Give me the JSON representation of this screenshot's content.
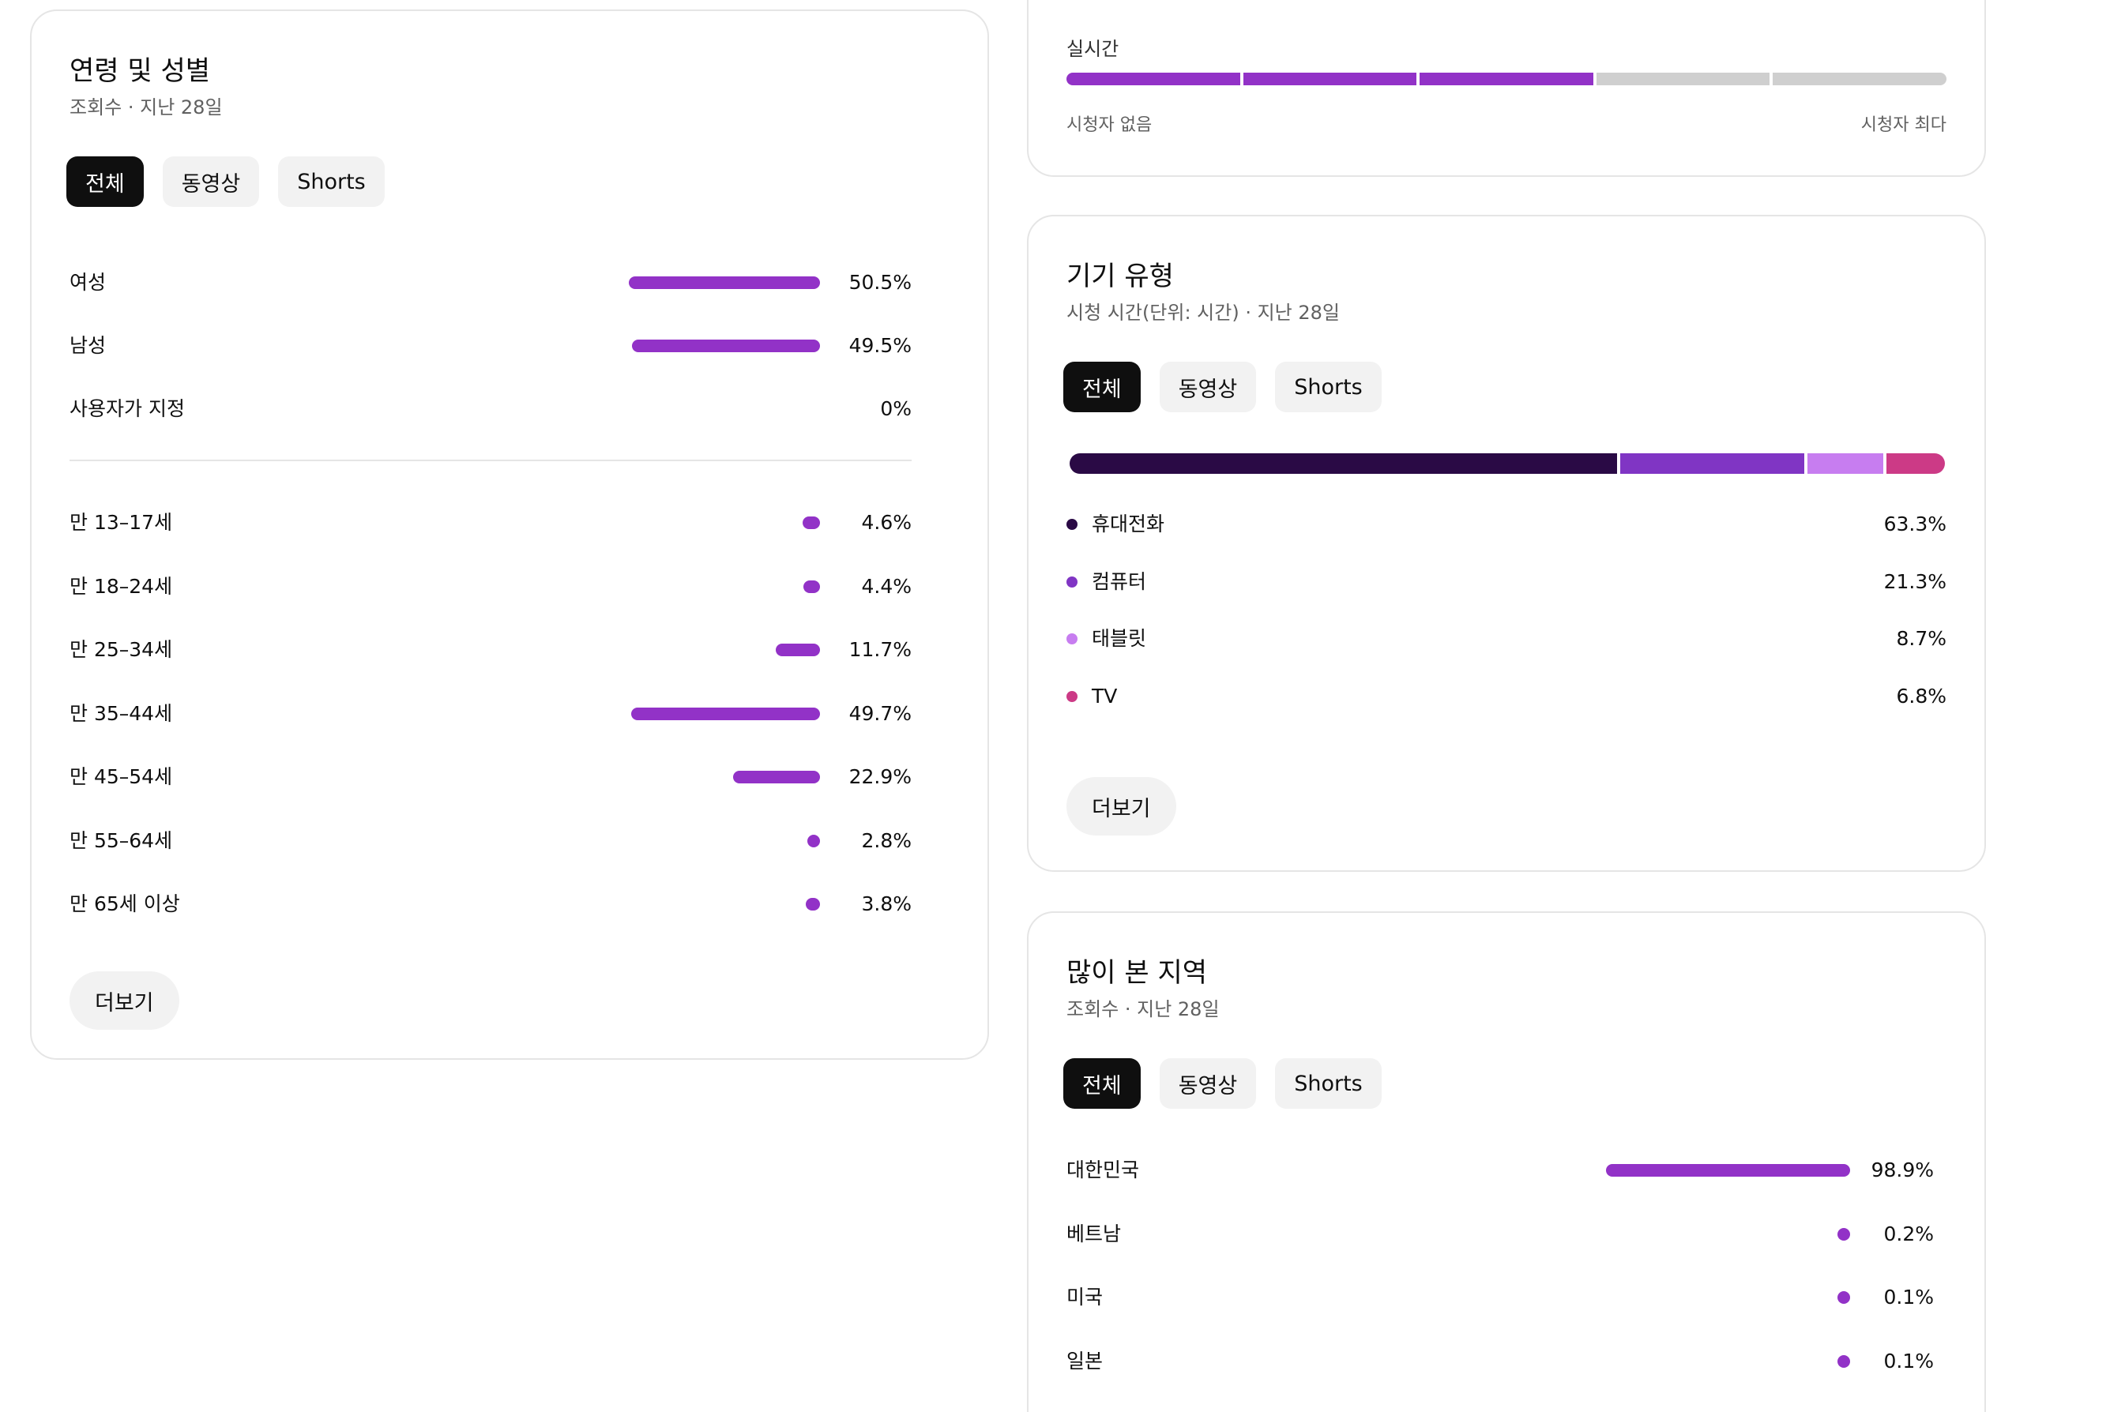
{
  "age_gender": {
    "title": "연령 및 성별",
    "subtitle": "조회수 · 지난 28일",
    "chips": [
      "전체",
      "동영상",
      "Shorts"
    ],
    "active_chip": "전체",
    "gender": [
      {
        "label": "여성",
        "value": "50.5%",
        "pct": 50.5
      },
      {
        "label": "남성",
        "value": "49.5%",
        "pct": 49.5
      },
      {
        "label": "사용자가 지정",
        "value": "0%",
        "pct": 0
      }
    ],
    "age": [
      {
        "label": "만 13–17세",
        "value": "4.6%",
        "pct": 4.6
      },
      {
        "label": "만 18–24세",
        "value": "4.4%",
        "pct": 4.4
      },
      {
        "label": "만 25–34세",
        "value": "11.7%",
        "pct": 11.7
      },
      {
        "label": "만 35–44세",
        "value": "49.7%",
        "pct": 49.7
      },
      {
        "label": "만 45–54세",
        "value": "22.9%",
        "pct": 22.9
      },
      {
        "label": "만 55–64세",
        "value": "2.8%",
        "pct": 2.8
      },
      {
        "label": "만 65세 이상",
        "value": "3.8%",
        "pct": 3.8
      }
    ],
    "more_label": "더보기"
  },
  "realtime": {
    "label": "실시간",
    "min_label": "시청자 없음",
    "max_label": "시청자 최다",
    "filled_segments": 3,
    "total_segments": 5
  },
  "device": {
    "title": "기기 유형",
    "subtitle": "시청 시간(단위: 시간) · 지난 28일",
    "chips": [
      "전체",
      "동영상",
      "Shorts"
    ],
    "active_chip": "전체",
    "items": [
      {
        "label": "휴대전화",
        "value": "63.3%",
        "pct": 63.3,
        "color": "#2a0a45"
      },
      {
        "label": "컴퓨터",
        "value": "21.3%",
        "pct": 21.3,
        "color": "#8035c4"
      },
      {
        "label": "태블릿",
        "value": "8.7%",
        "pct": 8.7,
        "color": "#c77df0"
      },
      {
        "label": "TV",
        "value": "6.8%",
        "pct": 6.8,
        "color": "#cc3a86"
      }
    ],
    "more_label": "더보기"
  },
  "region": {
    "title": "많이 본 지역",
    "subtitle": "조회수 · 지난 28일",
    "chips": [
      "전체",
      "동영상",
      "Shorts"
    ],
    "active_chip": "전체",
    "items": [
      {
        "label": "대한민국",
        "value": "98.9%",
        "pct": 98.9
      },
      {
        "label": "베트남",
        "value": "0.2%",
        "pct": 0.2
      },
      {
        "label": "미국",
        "value": "0.1%",
        "pct": 0.1
      },
      {
        "label": "일본",
        "value": "0.1%",
        "pct": 0.1
      }
    ]
  },
  "colors": {
    "bar": "#9232c7",
    "realtime_filled": "#9232c7",
    "realtime_empty": "#cfcfcf"
  }
}
